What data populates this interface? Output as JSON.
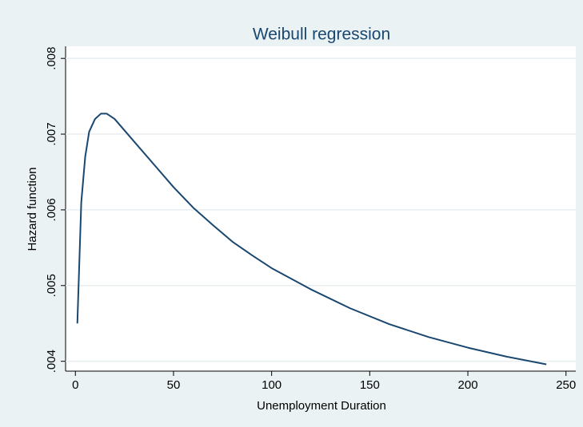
{
  "chart_data": {
    "type": "line",
    "title": "Weibull regression",
    "x_label": "Unemployment Duration",
    "y_label": "Hazard function",
    "x": [
      1,
      3,
      5,
      7,
      10,
      13,
      16,
      20,
      30,
      40,
      50,
      60,
      70,
      80,
      90,
      100,
      120,
      140,
      160,
      180,
      200,
      220,
      240
    ],
    "series": [
      {
        "name": "Hazard function",
        "color": "#1a476f",
        "values": [
          0.0045,
          0.0061,
          0.0067,
          0.00703,
          0.0072,
          0.00727,
          0.00727,
          0.0072,
          0.0069,
          0.0066,
          0.0063,
          0.00603,
          0.0058,
          0.00558,
          0.0054,
          0.00523,
          0.00495,
          0.0047,
          0.00449,
          0.00432,
          0.00418,
          0.00406,
          0.00396
        ]
      }
    ],
    "xlim": [
      -5,
      255
    ],
    "xticks": [
      0,
      50,
      100,
      150,
      200,
      250
    ],
    "ylim": [
      0.00387,
      0.00816
    ],
    "yticks": [
      {
        "value": 0.004,
        "label": ".004"
      },
      {
        "value": 0.005,
        "label": ".005"
      },
      {
        "value": 0.006,
        "label": ".006"
      },
      {
        "value": 0.007,
        "label": ".007"
      },
      {
        "value": 0.008,
        "label": ".008"
      }
    ],
    "grid": true
  }
}
